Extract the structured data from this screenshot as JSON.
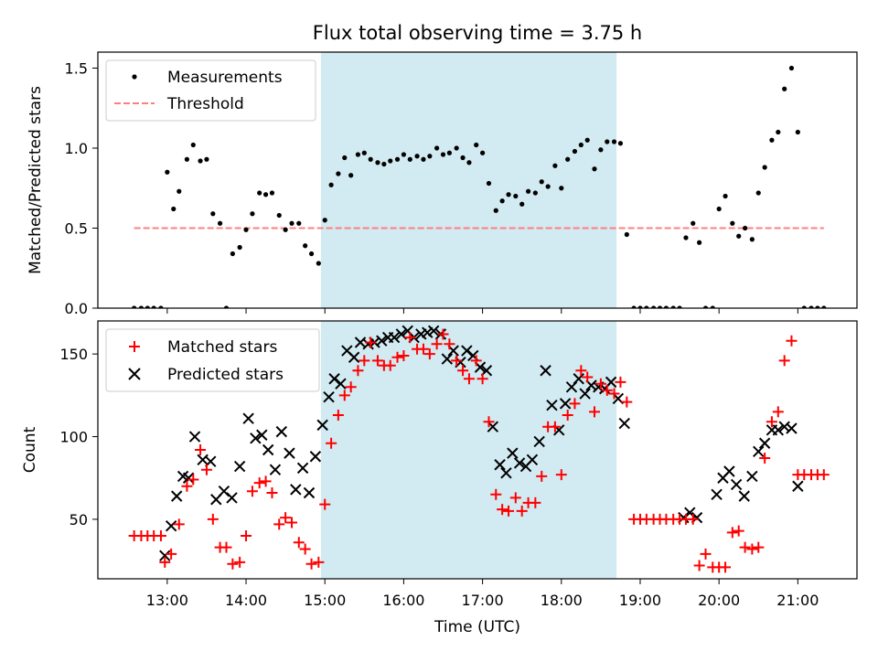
{
  "chart_data": [
    {
      "type": "scatter",
      "title": "Flux total observing time = 3.75 h",
      "xlabel": "",
      "ylabel": "Matched/Predicted stars",
      "xlim": [
        12.12,
        21.75
      ],
      "ylim": [
        0,
        1.6
      ],
      "yticks": [
        0,
        0.5,
        1.0,
        1.5
      ],
      "ytick_labels": [
        "0.0",
        "0.5",
        "1.0",
        "1.5"
      ],
      "xticks": [
        13,
        14,
        15,
        16,
        17,
        18,
        19,
        20,
        21
      ],
      "shaded_interval": [
        14.95,
        18.7
      ],
      "colors": {
        "points": "#000000",
        "threshold": "#ff7f7f",
        "shade": "#add8e6"
      },
      "legend": {
        "position": "upper-left",
        "entries": [
          {
            "label": "Measurements",
            "marker": "dot"
          },
          {
            "label": "Threshold",
            "marker": "dashed-line"
          }
        ]
      },
      "threshold": {
        "value": 0.5,
        "x_range": [
          12.58,
          21.33
        ]
      },
      "series": [
        {
          "name": "Measurements",
          "x": [
            12.58,
            12.67,
            12.75,
            12.83,
            12.92,
            13.0,
            13.08,
            13.15,
            13.25,
            13.33,
            13.42,
            13.5,
            13.58,
            13.67,
            13.75,
            13.83,
            13.92,
            14.0,
            14.08,
            14.17,
            14.25,
            14.33,
            14.42,
            14.5,
            14.58,
            14.67,
            14.75,
            14.83,
            14.92,
            15.0,
            15.08,
            15.17,
            15.25,
            15.33,
            15.42,
            15.5,
            15.58,
            15.67,
            15.75,
            15.83,
            15.92,
            16.0,
            16.08,
            16.17,
            16.25,
            16.33,
            16.42,
            16.5,
            16.58,
            16.67,
            16.75,
            16.83,
            16.92,
            17.0,
            17.08,
            17.17,
            17.25,
            17.33,
            17.42,
            17.5,
            17.58,
            17.67,
            17.75,
            17.83,
            17.92,
            18.0,
            18.08,
            18.17,
            18.25,
            18.33,
            18.42,
            18.5,
            18.58,
            18.67,
            18.75,
            18.83,
            18.92,
            19.0,
            19.08,
            19.17,
            19.25,
            19.33,
            19.42,
            19.5,
            19.58,
            19.67,
            19.75,
            19.83,
            19.92,
            20.0,
            20.08,
            20.17,
            20.25,
            20.33,
            20.42,
            20.5,
            20.58,
            20.67,
            20.75,
            20.83,
            20.92,
            21.0,
            21.08,
            21.17,
            21.25,
            21.33
          ],
          "y": [
            0.0,
            0.0,
            0.0,
            0.0,
            0.0,
            0.85,
            0.62,
            0.73,
            0.93,
            1.02,
            0.92,
            0.93,
            0.59,
            0.53,
            0.0,
            0.34,
            0.38,
            0.49,
            0.59,
            0.72,
            0.71,
            0.72,
            0.58,
            0.49,
            0.53,
            0.53,
            0.39,
            0.34,
            0.28,
            0.55,
            0.77,
            0.84,
            0.94,
            0.83,
            0.96,
            0.97,
            0.93,
            0.91,
            0.9,
            0.92,
            0.93,
            0.96,
            0.93,
            0.95,
            0.93,
            0.95,
            1.0,
            0.96,
            0.97,
            1.0,
            0.94,
            0.91,
            1.02,
            0.97,
            0.78,
            0.61,
            0.67,
            0.71,
            0.7,
            0.65,
            0.73,
            0.72,
            0.79,
            0.76,
            0.89,
            0.75,
            0.93,
            0.98,
            1.02,
            1.05,
            0.87,
            0.99,
            1.04,
            1.04,
            1.03,
            0.46,
            0.0,
            0.0,
            0.0,
            0.0,
            0.0,
            0.0,
            0.0,
            0.0,
            0.44,
            0.53,
            0.41,
            0.0,
            0.0,
            0.62,
            0.7,
            0.53,
            0.45,
            0.5,
            0.43,
            0.72,
            0.88,
            1.05,
            1.1,
            1.37,
            1.5,
            1.1,
            0.0,
            0.0,
            0.0,
            0.0
          ]
        }
      ]
    },
    {
      "type": "scatter",
      "title": "",
      "xlabel": "Time (UTC)",
      "ylabel": "Count",
      "xlim": [
        12.12,
        21.75
      ],
      "ylim": [
        14,
        170
      ],
      "yticks": [
        50,
        100,
        150
      ],
      "xticks": [
        13,
        14,
        15,
        16,
        17,
        18,
        19,
        20,
        21
      ],
      "xtick_labels": [
        "13:00",
        "14:00",
        "15:00",
        "16:00",
        "17:00",
        "18:00",
        "19:00",
        "20:00",
        "21:00"
      ],
      "shaded_interval": [
        14.95,
        18.7
      ],
      "colors": {
        "matched": "#ff0000",
        "predicted": "#000000",
        "shade": "#add8e6"
      },
      "legend": {
        "position": "upper-left",
        "entries": [
          {
            "label": "Matched stars",
            "marker": "plus"
          },
          {
            "label": "Predicted stars",
            "marker": "x"
          }
        ]
      },
      "series": [
        {
          "name": "Matched stars",
          "x": [
            12.58,
            12.67,
            12.75,
            12.83,
            12.92,
            12.97,
            13.05,
            13.15,
            13.25,
            13.33,
            13.42,
            13.5,
            13.58,
            13.67,
            13.75,
            13.83,
            13.92,
            14.0,
            14.08,
            14.17,
            14.25,
            14.33,
            14.42,
            14.5,
            14.58,
            14.67,
            14.75,
            14.83,
            14.92,
            15.0,
            15.08,
            15.17,
            15.25,
            15.33,
            15.42,
            15.5,
            15.58,
            15.67,
            15.75,
            15.83,
            15.92,
            16.0,
            16.08,
            16.17,
            16.25,
            16.33,
            16.42,
            16.5,
            16.58,
            16.67,
            16.75,
            16.83,
            16.92,
            17.0,
            17.08,
            17.17,
            17.25,
            17.33,
            17.42,
            17.5,
            17.58,
            17.67,
            17.75,
            17.83,
            17.92,
            18.0,
            18.08,
            18.17,
            18.25,
            18.33,
            18.42,
            18.5,
            18.58,
            18.67,
            18.75,
            18.83,
            18.92,
            19.0,
            19.08,
            19.17,
            19.25,
            19.33,
            19.42,
            19.5,
            19.58,
            19.67,
            19.75,
            19.83,
            19.92,
            20.0,
            20.08,
            20.17,
            20.25,
            20.33,
            20.42,
            20.5,
            20.58,
            20.67,
            20.75,
            20.83,
            20.92,
            21.0,
            21.08,
            21.17,
            21.25,
            21.33
          ],
          "y": [
            40,
            40,
            40,
            40,
            40,
            24,
            29,
            47,
            70,
            74,
            92,
            80,
            50,
            33,
            33,
            23,
            24,
            40,
            67,
            72,
            73,
            66,
            47,
            51,
            48,
            36,
            32,
            23,
            24,
            59,
            96,
            113,
            125,
            130,
            140,
            146,
            157,
            146,
            143,
            143,
            148,
            149,
            160,
            153,
            153,
            150,
            156,
            162,
            156,
            146,
            140,
            135,
            146,
            135,
            109,
            65,
            56,
            55,
            63,
            55,
            60,
            60,
            76,
            106,
            106,
            77,
            113,
            120,
            140,
            136,
            115,
            132,
            128,
            126,
            133,
            121,
            50,
            50,
            50,
            50,
            50,
            50,
            50,
            50,
            50,
            50,
            22,
            29,
            21,
            21,
            21,
            42,
            43,
            33,
            32,
            33,
            87,
            109,
            115,
            146,
            158,
            77,
            77,
            77,
            77,
            77
          ],
          "notes": "values read from pixel positions"
        },
        {
          "name": "Predicted stars",
          "x": [
            12.97,
            13.05,
            13.12,
            13.2,
            13.27,
            13.35,
            13.45,
            13.55,
            13.62,
            13.72,
            13.82,
            13.92,
            14.03,
            14.12,
            14.2,
            14.28,
            14.37,
            14.45,
            14.55,
            14.63,
            14.72,
            14.8,
            14.88,
            14.97,
            15.05,
            15.12,
            15.2,
            15.28,
            15.37,
            15.45,
            15.55,
            15.63,
            15.72,
            15.8,
            15.88,
            15.97,
            16.05,
            16.13,
            16.22,
            16.3,
            16.38,
            16.47,
            16.55,
            16.63,
            16.72,
            16.8,
            16.88,
            16.97,
            17.05,
            17.13,
            17.22,
            17.3,
            17.38,
            17.47,
            17.55,
            17.63,
            17.72,
            17.8,
            17.88,
            17.97,
            18.05,
            18.13,
            18.22,
            18.3,
            18.38,
            18.47,
            18.55,
            18.63,
            18.72,
            18.8,
            19.55,
            19.63,
            19.72,
            19.97,
            20.05,
            20.13,
            20.22,
            20.32,
            20.42,
            20.5,
            20.58,
            20.67,
            20.75,
            20.83,
            20.92,
            21.0
          ],
          "y": [
            28,
            46,
            64,
            76,
            75,
            100,
            86,
            85,
            62,
            67,
            63,
            82,
            111,
            99,
            101,
            92,
            80,
            103,
            90,
            68,
            81,
            66,
            88,
            107,
            124,
            135,
            132,
            152,
            148,
            157,
            156,
            157,
            158,
            160,
            160,
            162,
            164,
            160,
            162,
            163,
            164,
            162,
            147,
            152,
            145,
            152,
            149,
            142,
            140,
            106,
            83,
            78,
            90,
            84,
            82,
            86,
            97,
            140,
            119,
            104,
            120,
            130,
            135,
            126,
            131,
            130,
            129,
            133,
            123,
            108,
            51,
            54,
            51,
            65,
            75,
            79,
            71,
            64,
            76,
            91,
            96,
            104,
            104,
            106,
            105,
            70
          ]
        }
      ]
    }
  ]
}
